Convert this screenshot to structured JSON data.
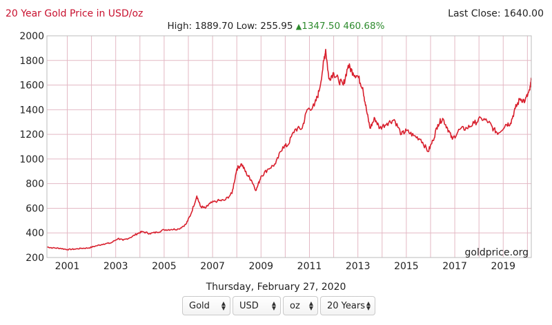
{
  "header": {
    "title": "20 Year Gold Price in USD/oz",
    "last_close_label": "Last Close:",
    "last_close_value": "1640.00"
  },
  "stats": {
    "high_label": "High:",
    "high_value": "1889.70",
    "low_label": "Low:",
    "low_value": "255.95",
    "change_value": "1347.50",
    "change_percent": "460.68%"
  },
  "footer": {
    "date": "Thursday, February 27, 2020",
    "watermark": "goldprice.org"
  },
  "selectors": {
    "metal": "Gold",
    "currency": "USD",
    "unit": "oz",
    "period": "20 Years"
  },
  "colors": {
    "line": "#d81e2c",
    "grid": "#e3b8c4",
    "axis_frame": "#bbbbbb",
    "title": "#c8102e",
    "positive": "#2e8b2e"
  },
  "chart_data": {
    "type": "line",
    "title": "20 Year Gold Price in USD/oz",
    "xlabel": "",
    "ylabel": "",
    "xlim": [
      2000.16,
      2020.16
    ],
    "ylim": [
      200,
      2000
    ],
    "x_ticks": [
      2001,
      2003,
      2005,
      2007,
      2009,
      2011,
      2013,
      2015,
      2017,
      2019
    ],
    "y_ticks": [
      200,
      400,
      600,
      800,
      1000,
      1200,
      1400,
      1600,
      1800,
      2000
    ],
    "grid": true,
    "series": [
      {
        "name": "Gold USD/oz",
        "x": [
          2000.16,
          2000.4,
          2000.7,
          2001.0,
          2001.3,
          2001.6,
          2001.9,
          2002.2,
          2002.5,
          2002.8,
          2003.1,
          2003.3,
          2003.6,
          2003.9,
          2004.1,
          2004.4,
          2004.7,
          2005.0,
          2005.3,
          2005.6,
          2005.9,
          2006.1,
          2006.35,
          2006.5,
          2006.7,
          2006.9,
          2007.2,
          2007.5,
          2007.8,
          2008.0,
          2008.2,
          2008.4,
          2008.6,
          2008.8,
          2009.0,
          2009.3,
          2009.6,
          2009.9,
          2010.1,
          2010.4,
          2010.7,
          2010.9,
          2011.2,
          2011.4,
          2011.6,
          2011.67,
          2011.8,
          2012.0,
          2012.2,
          2012.4,
          2012.6,
          2012.8,
          2013.0,
          2013.2,
          2013.35,
          2013.5,
          2013.7,
          2013.9,
          2014.2,
          2014.5,
          2014.8,
          2015.0,
          2015.3,
          2015.6,
          2015.9,
          2016.1,
          2016.3,
          2016.5,
          2016.7,
          2016.9,
          2017.2,
          2017.5,
          2017.8,
          2018.1,
          2018.4,
          2018.6,
          2018.8,
          2019.1,
          2019.3,
          2019.5,
          2019.7,
          2019.9,
          2020.1,
          2020.16
        ],
        "values": [
          286,
          278,
          275,
          265,
          268,
          275,
          278,
          295,
          310,
          318,
          355,
          340,
          362,
          395,
          410,
          395,
          405,
          425,
          428,
          432,
          470,
          550,
          700,
          615,
          600,
          640,
          660,
          665,
          720,
          920,
          960,
          880,
          830,
          745,
          860,
          920,
          960,
          1100,
          1110,
          1240,
          1250,
          1400,
          1430,
          1550,
          1800,
          1890,
          1650,
          1700,
          1640,
          1600,
          1760,
          1700,
          1670,
          1580,
          1400,
          1250,
          1330,
          1250,
          1290,
          1320,
          1200,
          1230,
          1190,
          1160,
          1060,
          1150,
          1280,
          1330,
          1250,
          1160,
          1240,
          1250,
          1290,
          1330,
          1300,
          1240,
          1210,
          1280,
          1290,
          1410,
          1490,
          1470,
          1560,
          1640
        ]
      }
    ]
  }
}
